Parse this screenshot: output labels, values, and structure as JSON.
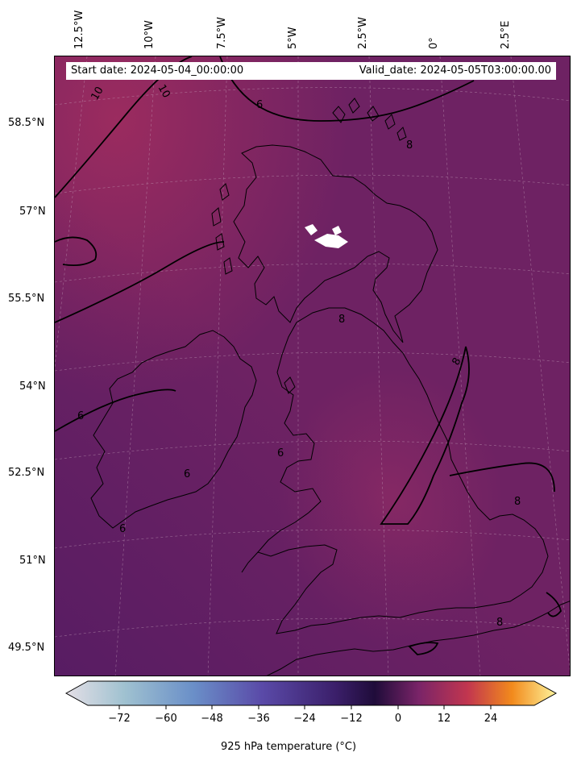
{
  "map": {
    "start_date": "Start date: 2024-05-04_00:00:00",
    "valid_date": "Valid_date: 2024-05-05T03:00:00.00",
    "field_background": "#6e2263",
    "lon_labels": [
      "12.5°W",
      "10°W",
      "7.5°W",
      "5°W",
      "2.5°W",
      "0°",
      "2.5°E"
    ],
    "lat_labels": [
      "58.5°N",
      "57°N",
      "55.5°N",
      "54°N",
      "52.5°N",
      "51°N",
      "49.5°N"
    ],
    "contour_labels": [
      "10",
      "10",
      "6",
      "8",
      "8",
      "6",
      "6",
      "6",
      "8",
      "8",
      "6",
      "8"
    ]
  },
  "colorbar": {
    "label": "925 hPa temperature ($^\\circ$C)",
    "display_label": "925 hPa temperature (°C)",
    "ticks": [
      "−72",
      "−60",
      "−48",
      "−36",
      "−24",
      "−12",
      "0",
      "12",
      "24"
    ],
    "range": [
      -80,
      32
    ],
    "colors": [
      "#e4dfe6",
      "#9fc1d0",
      "#5f86c4",
      "#5a4aa8",
      "#2a0f4e",
      "#7a2468",
      "#c2364f",
      "#f28a1c",
      "#fef39a"
    ]
  }
}
